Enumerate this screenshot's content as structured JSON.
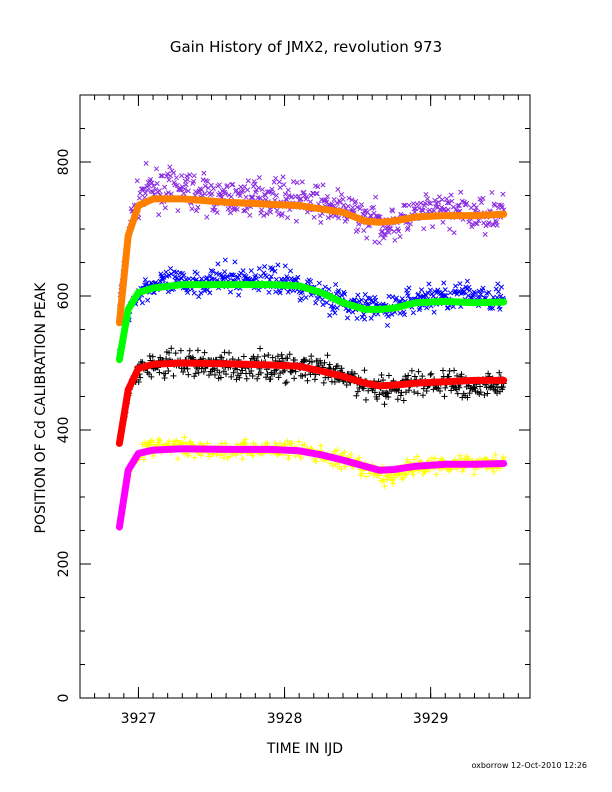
{
  "chart_data": {
    "type": "scatter",
    "title": "Gain History of JMX2, revolution 973",
    "xlabel": "TIME IN IJD",
    "ylabel": "POSITION OF Cd CALIBRATION PEAK",
    "xlim": [
      3926.6,
      3929.68
    ],
    "ylim": [
      0,
      900
    ],
    "xticks": [
      3927,
      3928,
      3929
    ],
    "yticks": [
      0,
      200,
      400,
      600,
      800
    ],
    "grid": false,
    "footer": "oxborrow 12-Oct-2010 12:26",
    "series": [
      {
        "kind": "scatter",
        "marker": "x",
        "color": "#8a2be2",
        "x": [
          3926.87,
          3926.95,
          3927.05,
          3927.3,
          3927.6,
          3927.9,
          3928.05,
          3928.3,
          3928.45,
          3928.7,
          3928.9,
          3929.1,
          3929.3,
          3929.5
        ],
        "y": [
          590,
          720,
          760,
          760,
          745,
          750,
          745,
          735,
          725,
          705,
          720,
          730,
          720,
          730
        ],
        "spread": 18
      },
      {
        "kind": "line",
        "color": "#ff8000",
        "x": [
          3926.87,
          3926.93,
          3927.0,
          3927.1,
          3927.3,
          3927.6,
          3927.9,
          3928.1,
          3928.25,
          3928.4,
          3928.55,
          3928.65,
          3928.75,
          3928.9,
          3929.1,
          3929.3,
          3929.5
        ],
        "y": [
          560,
          690,
          735,
          745,
          745,
          740,
          737,
          735,
          730,
          725,
          712,
          710,
          712,
          718,
          720,
          720,
          722
        ]
      },
      {
        "kind": "scatter",
        "marker": "x",
        "color": "#0000ff",
        "x": [
          3926.87,
          3926.95,
          3927.05,
          3927.3,
          3927.6,
          3927.9,
          3928.05,
          3928.3,
          3928.45,
          3928.7,
          3928.9,
          3929.1,
          3929.3,
          3929.5
        ],
        "y": [
          510,
          590,
          615,
          620,
          625,
          625,
          620,
          600,
          585,
          580,
          595,
          600,
          600,
          600
        ],
        "spread": 14
      },
      {
        "kind": "line",
        "color": "#00ff00",
        "x": [
          3926.87,
          3926.93,
          3927.0,
          3927.1,
          3927.3,
          3927.6,
          3927.9,
          3928.1,
          3928.25,
          3928.4,
          3928.55,
          3928.65,
          3928.75,
          3928.9,
          3929.1,
          3929.3,
          3929.5
        ],
        "y": [
          505,
          580,
          605,
          612,
          617,
          617,
          617,
          615,
          605,
          590,
          580,
          580,
          582,
          590,
          592,
          590,
          591
        ]
      },
      {
        "kind": "scatter",
        "marker": "+",
        "color": "#000000",
        "x": [
          3926.87,
          3926.95,
          3927.05,
          3927.3,
          3927.6,
          3927.9,
          3928.05,
          3928.3,
          3928.45,
          3928.7,
          3928.9,
          3929.1,
          3929.3,
          3929.5
        ],
        "y": [
          380,
          470,
          495,
          500,
          495,
          495,
          495,
          485,
          475,
          460,
          470,
          470,
          465,
          470
        ],
        "spread": 14
      },
      {
        "kind": "line",
        "color": "#ff0000",
        "x": [
          3926.87,
          3926.93,
          3927.0,
          3927.1,
          3927.3,
          3927.6,
          3927.9,
          3928.1,
          3928.25,
          3928.4,
          3928.55,
          3928.65,
          3928.75,
          3928.9,
          3929.1,
          3929.3,
          3929.5
        ],
        "y": [
          380,
          460,
          492,
          498,
          500,
          499,
          497,
          495,
          488,
          480,
          470,
          466,
          467,
          470,
          472,
          474,
          474
        ]
      },
      {
        "kind": "scatter",
        "marker": "+",
        "color": "#ffff00",
        "x": [
          3926.87,
          3926.95,
          3927.05,
          3927.3,
          3927.6,
          3927.9,
          3928.05,
          3928.3,
          3928.45,
          3928.7,
          3928.9,
          3929.1,
          3929.3,
          3929.5
        ],
        "y": [
          260,
          350,
          375,
          375,
          370,
          372,
          372,
          360,
          350,
          330,
          345,
          350,
          350,
          352
        ],
        "spread": 9
      },
      {
        "kind": "line",
        "color": "#ff00ff",
        "x": [
          3926.87,
          3926.93,
          3927.0,
          3927.1,
          3927.3,
          3927.6,
          3927.9,
          3928.1,
          3928.25,
          3928.4,
          3928.55,
          3928.65,
          3928.75,
          3928.9,
          3929.1,
          3929.3,
          3929.5
        ],
        "y": [
          255,
          340,
          365,
          370,
          372,
          371,
          371,
          369,
          363,
          355,
          346,
          340,
          341,
          346,
          349,
          349,
          350
        ]
      }
    ]
  }
}
